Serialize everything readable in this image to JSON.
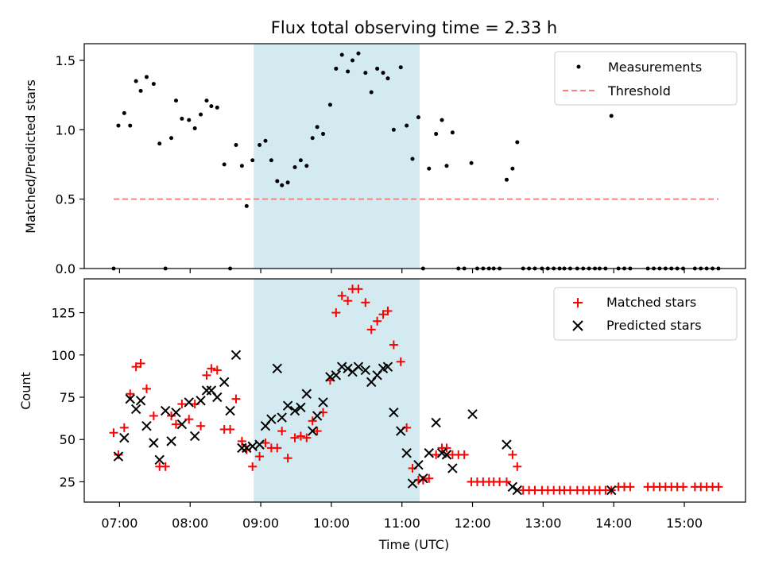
{
  "figure": {
    "title": "Flux total observing time = 2.33 h"
  },
  "chart_data": [
    {
      "type": "scatter",
      "panel": "top",
      "ylabel": "Matched/Predicted stars",
      "xlim": [
        "06:30",
        "15:52"
      ],
      "ylim": [
        0,
        1.62
      ],
      "yticks": [
        0.0,
        0.5,
        1.0,
        1.5
      ],
      "ytick_labels": [
        "0.0",
        "0.5",
        "1.0",
        "1.5"
      ],
      "highlight_span": [
        "08:54",
        "11:15"
      ],
      "highlight_color": "#d3eaf1",
      "legend_position": "top-right",
      "series": [
        {
          "name": "Measurements",
          "marker": "dot",
          "color": "#000000",
          "x": [
            "06:55",
            "06:59",
            "07:04",
            "07:09",
            "07:14",
            "07:18",
            "07:23",
            "07:29",
            "07:34",
            "07:39",
            "07:44",
            "07:48",
            "07:53",
            "07:59",
            "08:04",
            "08:09",
            "08:14",
            "08:18",
            "08:23",
            "08:29",
            "08:34",
            "08:39",
            "08:44",
            "08:48",
            "08:53",
            "08:59",
            "09:04",
            "09:09",
            "09:14",
            "09:18",
            "09:23",
            "09:29",
            "09:34",
            "09:39",
            "09:44",
            "09:48",
            "09:53",
            "09:59",
            "10:04",
            "10:09",
            "10:14",
            "10:18",
            "10:23",
            "10:29",
            "10:34",
            "10:39",
            "10:44",
            "10:48",
            "10:53",
            "10:59",
            "11:04",
            "11:09",
            "11:14",
            "11:18",
            "11:23",
            "11:29",
            "11:34",
            "11:38",
            "11:43",
            "11:48",
            "11:53",
            "11:59",
            "12:04",
            "12:09",
            "12:14",
            "12:18",
            "12:23",
            "12:29",
            "12:34",
            "12:38",
            "12:43",
            "12:48",
            "12:53",
            "12:59",
            "13:04",
            "13:09",
            "13:14",
            "13:18",
            "13:23",
            "13:29",
            "13:34",
            "13:39",
            "13:44",
            "13:48",
            "13:53",
            "13:58",
            "14:04",
            "14:09",
            "14:14",
            "14:29",
            "14:34",
            "14:39",
            "14:44",
            "14:49",
            "14:54",
            "14:59",
            "15:09",
            "15:14",
            "15:19",
            "15:24",
            "15:29"
          ],
          "y": [
            0.0,
            1.03,
            1.12,
            1.03,
            1.35,
            1.28,
            1.38,
            1.33,
            0.9,
            0.0,
            0.94,
            1.21,
            1.08,
            1.07,
            1.01,
            1.11,
            1.21,
            1.17,
            1.16,
            0.75,
            0.0,
            0.89,
            0.74,
            0.45,
            0.78,
            0.89,
            0.92,
            0.78,
            0.63,
            0.6,
            0.62,
            0.73,
            0.78,
            0.74,
            0.94,
            1.02,
            0.97,
            1.18,
            1.44,
            1.54,
            1.42,
            1.5,
            1.55,
            1.41,
            1.27,
            1.44,
            1.41,
            1.37,
            1.0,
            1.45,
            1.03,
            0.79,
            1.09,
            0.0,
            0.72,
            0.97,
            1.07,
            0.74,
            0.98,
            0.0,
            0.0,
            0.76,
            0.0,
            0.0,
            0.0,
            0.0,
            0.0,
            0.64,
            0.72,
            0.91,
            0.0,
            0.0,
            0.0,
            0.0,
            0.0,
            0.0,
            0.0,
            0.0,
            0.0,
            0.0,
            0.0,
            0.0,
            0.0,
            0.0,
            0.0,
            1.1,
            0.0,
            0.0,
            0.0,
            0.0,
            0.0,
            0.0,
            0.0,
            0.0,
            0.0,
            0.0,
            0.0,
            0.0,
            0.0,
            0.0,
            0.0
          ]
        },
        {
          "name": "Threshold",
          "style": "dashed-line",
          "color": "#ff7f7f",
          "x": [
            "06:55",
            "15:29"
          ],
          "y": [
            0.5,
            0.5
          ]
        }
      ]
    },
    {
      "type": "scatter",
      "panel": "bottom",
      "xlabel": "Time (UTC)",
      "ylabel": "Count",
      "xlim": [
        "06:30",
        "15:52"
      ],
      "ylim": [
        13,
        145
      ],
      "xticks": [
        "07:00",
        "08:00",
        "09:00",
        "10:00",
        "11:00",
        "12:00",
        "13:00",
        "14:00",
        "15:00"
      ],
      "yticks": [
        25,
        50,
        75,
        100,
        125
      ],
      "highlight_span": [
        "08:54",
        "11:15"
      ],
      "highlight_color": "#d3eaf1",
      "legend_position": "top-right",
      "series": [
        {
          "name": "Matched stars",
          "marker": "plus",
          "color": "#ff0000",
          "x": [
            "06:55",
            "06:59",
            "07:04",
            "07:09",
            "07:14",
            "07:18",
            "07:23",
            "07:29",
            "07:34",
            "07:39",
            "07:44",
            "07:48",
            "07:53",
            "07:59",
            "08:04",
            "08:09",
            "08:14",
            "08:18",
            "08:23",
            "08:29",
            "08:34",
            "08:39",
            "08:44",
            "08:48",
            "08:53",
            "08:59",
            "09:04",
            "09:09",
            "09:14",
            "09:18",
            "09:23",
            "09:29",
            "09:34",
            "09:39",
            "09:44",
            "09:48",
            "09:53",
            "09:59",
            "10:04",
            "10:09",
            "10:14",
            "10:18",
            "10:23",
            "10:29",
            "10:34",
            "10:39",
            "10:44",
            "10:48",
            "10:53",
            "10:59",
            "11:04",
            "11:09",
            "11:14",
            "11:18",
            "11:23",
            "11:29",
            "11:34",
            "11:38",
            "11:43",
            "11:48",
            "11:53",
            "11:59",
            "12:04",
            "12:09",
            "12:14",
            "12:18",
            "12:23",
            "12:29",
            "12:34",
            "12:38",
            "12:43",
            "12:48",
            "12:53",
            "12:59",
            "13:04",
            "13:09",
            "13:14",
            "13:18",
            "13:23",
            "13:29",
            "13:34",
            "13:39",
            "13:44",
            "13:48",
            "13:53",
            "13:58",
            "14:04",
            "14:09",
            "14:14",
            "14:29",
            "14:34",
            "14:39",
            "14:44",
            "14:49",
            "14:54",
            "14:59",
            "15:09",
            "15:14",
            "15:19",
            "15:24",
            "15:29"
          ],
          "y": [
            54,
            41,
            57,
            77,
            93,
            95,
            80,
            64,
            34,
            34,
            64,
            59,
            71,
            62,
            71,
            58,
            88,
            92,
            91,
            56,
            56,
            74,
            49,
            44,
            34,
            40,
            48,
            45,
            45,
            55,
            39,
            51,
            52,
            51,
            61,
            55,
            66,
            85,
            125,
            135,
            132,
            139,
            139,
            131,
            115,
            120,
            124,
            126,
            106,
            96,
            57,
            33,
            26,
            26,
            27,
            41,
            45,
            45,
            41,
            41,
            41,
            25,
            25,
            25,
            25,
            25,
            25,
            25,
            41,
            34,
            20,
            20,
            20,
            20,
            20,
            20,
            20,
            20,
            20,
            20,
            20,
            20,
            20,
            20,
            20,
            20,
            22,
            22,
            22,
            22,
            22,
            22,
            22,
            22,
            22,
            22,
            22,
            22,
            22,
            22,
            22
          ]
        },
        {
          "name": "Predicted stars",
          "marker": "x",
          "color": "#000000",
          "x": [
            "06:59",
            "07:04",
            "07:09",
            "07:14",
            "07:18",
            "07:23",
            "07:29",
            "07:34",
            "07:39",
            "07:44",
            "07:48",
            "07:53",
            "07:59",
            "08:04",
            "08:09",
            "08:14",
            "08:18",
            "08:23",
            "08:29",
            "08:34",
            "08:39",
            "08:44",
            "08:48",
            "08:53",
            "08:59",
            "09:04",
            "09:09",
            "09:14",
            "09:18",
            "09:23",
            "09:29",
            "09:34",
            "09:39",
            "09:44",
            "09:48",
            "09:53",
            "09:59",
            "10:04",
            "10:09",
            "10:14",
            "10:18",
            "10:23",
            "10:29",
            "10:34",
            "10:39",
            "10:44",
            "10:48",
            "10:53",
            "10:59",
            "11:04",
            "11:09",
            "11:14",
            "11:18",
            "11:23",
            "11:29",
            "11:34",
            "11:38",
            "11:43",
            "12:00",
            "12:29",
            "12:34",
            "12:38",
            "13:58"
          ],
          "y": [
            40,
            51,
            74,
            68,
            73,
            58,
            48,
            38,
            67,
            49,
            66,
            59,
            72,
            52,
            73,
            79,
            79,
            75,
            84,
            67,
            100,
            45,
            45,
            46,
            47,
            58,
            62,
            92,
            63,
            70,
            67,
            69,
            77,
            55,
            64,
            72,
            87,
            88,
            93,
            92,
            90,
            93,
            91,
            84,
            88,
            92,
            93,
            66,
            55,
            42,
            24,
            35,
            27,
            42,
            60,
            42,
            41,
            33,
            65,
            47,
            22,
            20,
            20
          ]
        }
      ]
    }
  ]
}
